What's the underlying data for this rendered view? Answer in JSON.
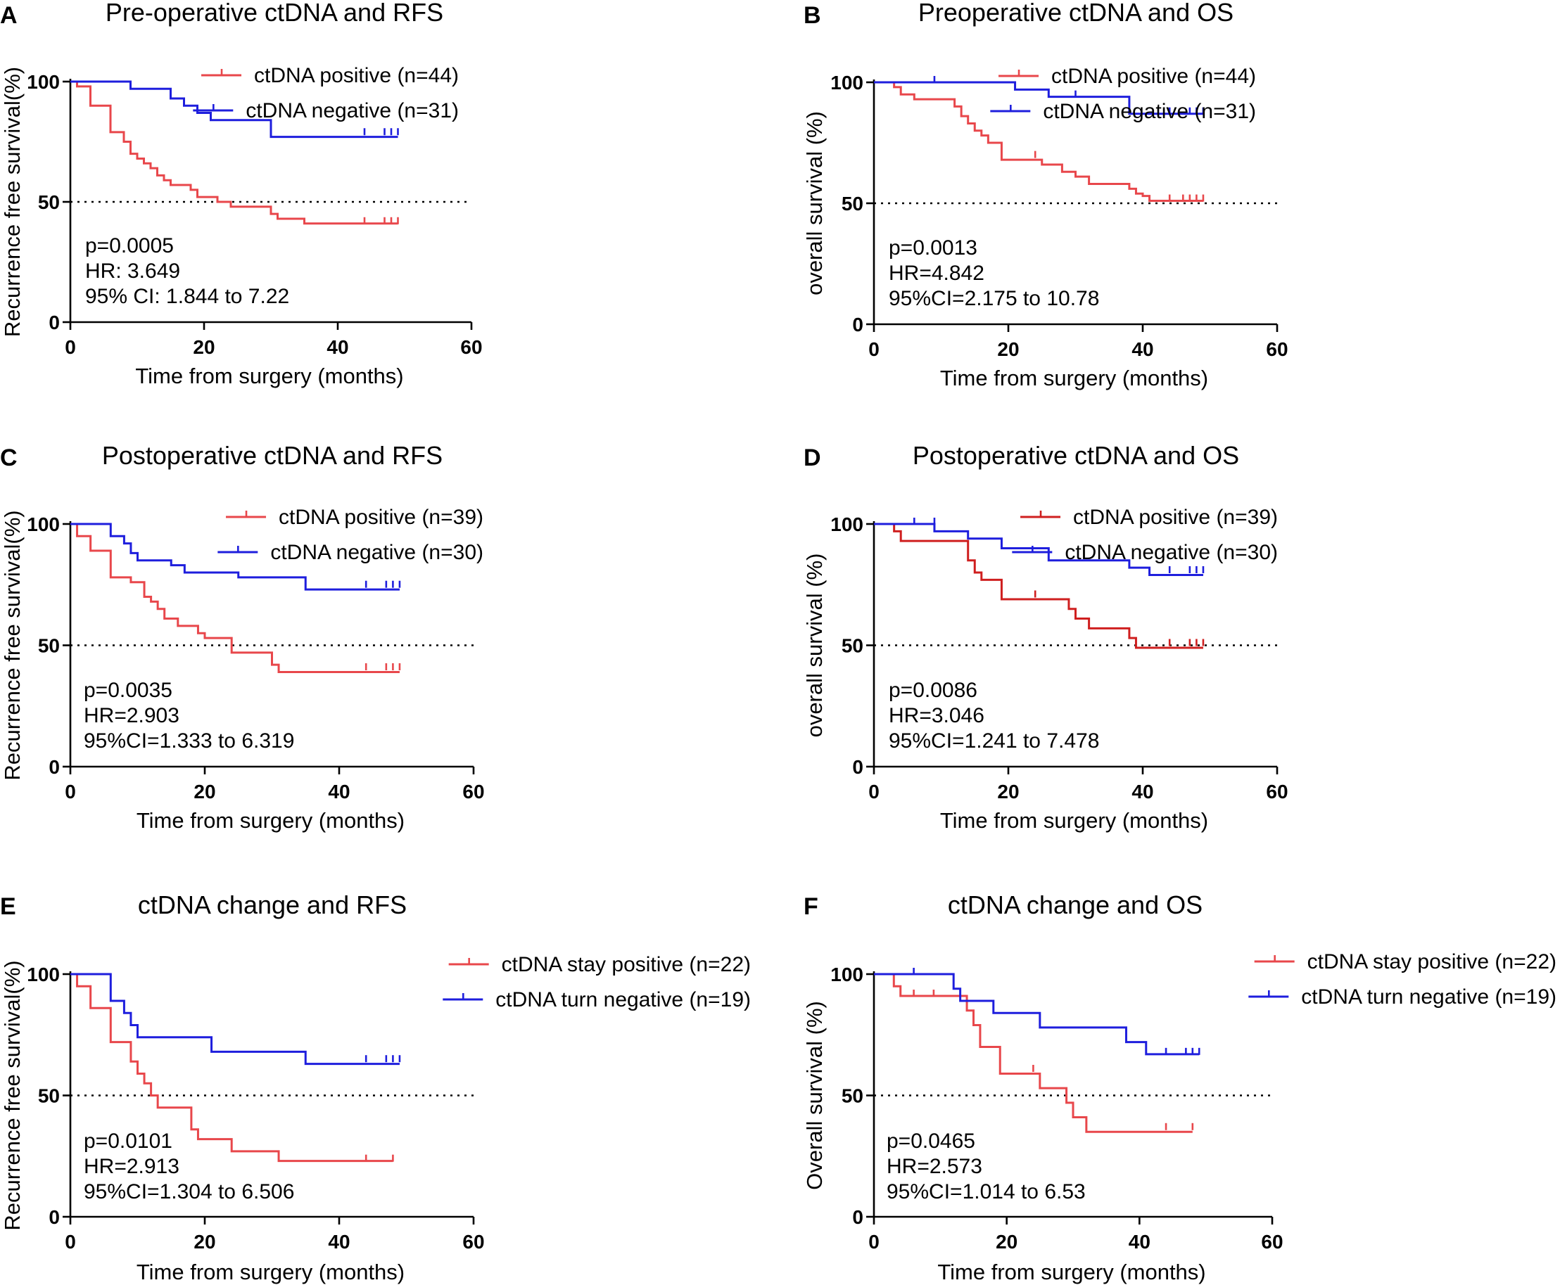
{
  "chart_data": [
    {
      "type": "line",
      "panel_label": "A",
      "title": "Pre-operative ctDNA and RFS",
      "xlabel": "Time from surgery (months)",
      "ylabel": "Recurrence free survival(%)",
      "xlim": [
        0,
        60
      ],
      "ylim": [
        0,
        100
      ],
      "xticks": [
        "0",
        "20",
        "40",
        "60"
      ],
      "yticks": [
        "0",
        "50",
        "100"
      ],
      "reference_line": 50,
      "stats": [
        "p=0.0005",
        "HR: 3.649",
        "95% CI: 1.844 to 7.22"
      ],
      "series": [
        {
          "name": "ctDNA positive (n=44)",
          "color": "#e8474b",
          "x": [
            0,
            1,
            3,
            6,
            8,
            9,
            10,
            11,
            12,
            13,
            14,
            15,
            16,
            18,
            19,
            20,
            22,
            24,
            26,
            28,
            30,
            31,
            33,
            35,
            49
          ],
          "y": [
            100,
            98,
            90,
            79,
            75,
            70,
            68,
            66,
            64,
            61,
            59,
            57,
            57,
            55,
            52,
            52,
            50,
            48,
            48,
            48,
            45,
            43,
            43,
            41,
            41
          ],
          "censored": [
            [
              44,
              41
            ],
            [
              47,
              41
            ],
            [
              48,
              41
            ],
            [
              49,
              41
            ]
          ]
        },
        {
          "name": "ctDNA negative (n=31)",
          "color": "#1e1edd",
          "x": [
            0,
            9,
            15,
            17,
            19,
            21,
            30,
            49
          ],
          "y": [
            100,
            97,
            93,
            90,
            87,
            84,
            77,
            77
          ],
          "censored": [
            [
              44,
              78
            ],
            [
              47,
              78
            ],
            [
              48,
              78
            ],
            [
              49,
              78
            ]
          ]
        }
      ]
    },
    {
      "type": "line",
      "panel_label": "B",
      "title": "Preoperative ctDNA and OS",
      "xlabel": "Time from surgery (months)",
      "ylabel": "overall survival (%)",
      "xlim": [
        0,
        60
      ],
      "ylim": [
        0,
        100
      ],
      "xticks": [
        "0",
        "20",
        "40",
        "60"
      ],
      "yticks": [
        "0",
        "50",
        "100"
      ],
      "reference_line": 50,
      "stats": [
        "p=0.0013",
        "HR=4.842",
        "95%CI=2.175 to 10.78"
      ],
      "series": [
        {
          "name": "ctDNA positive (n=44)",
          "color": "#e8474b",
          "x": [
            0,
            3,
            4,
            6,
            12,
            13,
            14,
            15,
            16,
            17,
            19,
            25,
            28,
            30,
            32,
            38,
            39,
            40,
            41,
            49
          ],
          "y": [
            100,
            98,
            95,
            93,
            90,
            86,
            83,
            80,
            78,
            75,
            68,
            66,
            63,
            61,
            58,
            56,
            54,
            53,
            51,
            51
          ],
          "censored": [
            [
              24,
              69
            ],
            [
              44,
              51
            ],
            [
              46,
              51
            ],
            [
              47,
              51
            ],
            [
              48,
              51
            ],
            [
              49,
              51
            ]
          ]
        },
        {
          "name": "ctDNA negative (n=31)",
          "color": "#1e1edd",
          "x": [
            0,
            21,
            26,
            38,
            49
          ],
          "y": [
            100,
            97,
            94,
            87,
            87
          ],
          "censored": [
            [
              9,
              100
            ],
            [
              30,
              94
            ],
            [
              44,
              87
            ],
            [
              47,
              87
            ],
            [
              48,
              87
            ],
            [
              49,
              87
            ]
          ]
        }
      ]
    },
    {
      "type": "line",
      "panel_label": "C",
      "title": "Postoperative ctDNA and RFS",
      "xlabel": "Time from surgery (months)",
      "ylabel": "Recurrence free survival(%)",
      "xlim": [
        0,
        60
      ],
      "ylim": [
        0,
        100
      ],
      "xticks": [
        "0",
        "20",
        "40",
        "60"
      ],
      "yticks": [
        "0",
        "50",
        "100"
      ],
      "reference_line": 50,
      "stats": [
        "p=0.0035",
        "HR=2.903",
        "95%CI=1.333 to 6.319"
      ],
      "series": [
        {
          "name": "ctDNA positive (n=39)",
          "color": "#e8474b",
          "x": [
            0,
            1,
            3,
            6,
            9,
            11,
            12,
            13,
            14,
            16,
            19,
            20,
            24,
            30,
            31,
            49
          ],
          "y": [
            100,
            95,
            89,
            78,
            76,
            70,
            68,
            65,
            61,
            58,
            55,
            53,
            47,
            42,
            39,
            39
          ],
          "censored": [
            [
              44,
              40
            ],
            [
              47,
              40
            ],
            [
              48,
              40
            ],
            [
              49,
              40
            ]
          ]
        },
        {
          "name": "ctDNA negative (n=30)",
          "color": "#1e1edd",
          "x": [
            0,
            6,
            8,
            9,
            10,
            15,
            17,
            25,
            35,
            49
          ],
          "y": [
            100,
            95,
            92,
            88,
            85,
            83,
            80,
            78,
            73,
            73
          ],
          "censored": [
            [
              44,
              74
            ],
            [
              47,
              74
            ],
            [
              48,
              74
            ],
            [
              49,
              74
            ]
          ]
        }
      ]
    },
    {
      "type": "line",
      "panel_label": "D",
      "title": "Postoperative ctDNA and OS",
      "xlabel": "Time from surgery (months)",
      "ylabel": "overall survival (%)",
      "xlim": [
        0,
        60
      ],
      "ylim": [
        0,
        100
      ],
      "xticks": [
        "0",
        "20",
        "40",
        "60"
      ],
      "yticks": [
        "0",
        "50",
        "100"
      ],
      "reference_line": 50,
      "stats": [
        "p=0.0086",
        "HR=3.046",
        "95%CI=1.241 to 7.478"
      ],
      "series": [
        {
          "name": "ctDNA positive (n=39)",
          "color": "#cf1f1f",
          "x": [
            0,
            3,
            4,
            14,
            15,
            16,
            19,
            29,
            30,
            32,
            38,
            39,
            49
          ],
          "y": [
            100,
            97,
            93,
            85,
            80,
            77,
            69,
            65,
            61,
            57,
            53,
            49,
            49
          ],
          "censored": [
            [
              24,
              70
            ],
            [
              44,
              50
            ],
            [
              47,
              50
            ],
            [
              48,
              50
            ],
            [
              49,
              50
            ]
          ]
        },
        {
          "name": "ctDNA negative (n=30)",
          "color": "#1e1edd",
          "x": [
            0,
            9,
            14,
            19,
            26,
            38,
            41,
            49
          ],
          "y": [
            100,
            97,
            94,
            90,
            85,
            82,
            79,
            79
          ],
          "censored": [
            [
              6,
              100
            ],
            [
              9,
              100
            ],
            [
              44,
              80
            ],
            [
              47,
              80
            ],
            [
              48,
              80
            ],
            [
              49,
              80
            ]
          ]
        }
      ]
    },
    {
      "type": "line",
      "panel_label": "E",
      "title": "ctDNA change and RFS",
      "xlabel": "Time from surgery (months)",
      "ylabel": "Recurrence free survival(%)",
      "xlim": [
        0,
        60
      ],
      "ylim": [
        0,
        100
      ],
      "xticks": [
        "0",
        "20",
        "40",
        "60"
      ],
      "yticks": [
        "0",
        "50",
        "100"
      ],
      "reference_line": 50,
      "stats": [
        "p=0.0101",
        "HR=2.913",
        "95%CI=1.304 to 6.506"
      ],
      "series": [
        {
          "name": "ctDNA stay positive (n=22)",
          "color": "#e8474b",
          "x": [
            0,
            1,
            3,
            6,
            9,
            10,
            11,
            12,
            13,
            14,
            18,
            19,
            24,
            31,
            48
          ],
          "y": [
            100,
            95,
            86,
            72,
            64,
            59,
            55,
            50,
            45,
            45,
            36,
            32,
            27,
            23,
            23
          ],
          "censored": [
            [
              44,
              23
            ],
            [
              48,
              23
            ]
          ]
        },
        {
          "name": "ctDNA turn negative (n=19)",
          "color": "#1e1edd",
          "x": [
            0,
            6,
            8,
            9,
            10,
            21,
            35,
            49
          ],
          "y": [
            100,
            89,
            84,
            79,
            74,
            68,
            63,
            63
          ],
          "censored": [
            [
              44,
              64
            ],
            [
              47,
              64
            ],
            [
              48,
              64
            ],
            [
              49,
              64
            ]
          ]
        }
      ]
    },
    {
      "type": "line",
      "panel_label": "F",
      "title": "ctDNA change and OS",
      "xlabel": "Time from surgery (months)",
      "ylabel": "Overall survival (%)",
      "xlim": [
        0,
        60
      ],
      "ylim": [
        0,
        100
      ],
      "xticks": [
        "0",
        "20",
        "40",
        "60"
      ],
      "yticks": [
        "0",
        "50",
        "100"
      ],
      "reference_line": 50,
      "stats": [
        "p=0.0465",
        "HR=2.573",
        "95%CI=1.014 to 6.53"
      ],
      "series": [
        {
          "name": "ctDNA stay positive (n=22)",
          "color": "#e8474b",
          "x": [
            0,
            3,
            4,
            13,
            14,
            15,
            16,
            19,
            25,
            29,
            30,
            32,
            48
          ],
          "y": [
            100,
            95,
            91,
            91,
            85,
            79,
            70,
            59,
            53,
            47,
            41,
            35,
            35
          ],
          "censored": [
            [
              6,
              91
            ],
            [
              9,
              91
            ],
            [
              24,
              60
            ],
            [
              44,
              36
            ],
            [
              48,
              36
            ]
          ]
        },
        {
          "name": "ctDNA turn negative (n=19)",
          "color": "#1e1edd",
          "x": [
            0,
            12,
            13,
            18,
            25,
            38,
            41,
            49
          ],
          "y": [
            100,
            94,
            89,
            84,
            78,
            72,
            67,
            67
          ],
          "censored": [
            [
              6,
              100
            ],
            [
              44,
              67
            ],
            [
              47,
              67
            ],
            [
              48,
              67
            ],
            [
              49,
              67
            ]
          ]
        }
      ]
    }
  ]
}
